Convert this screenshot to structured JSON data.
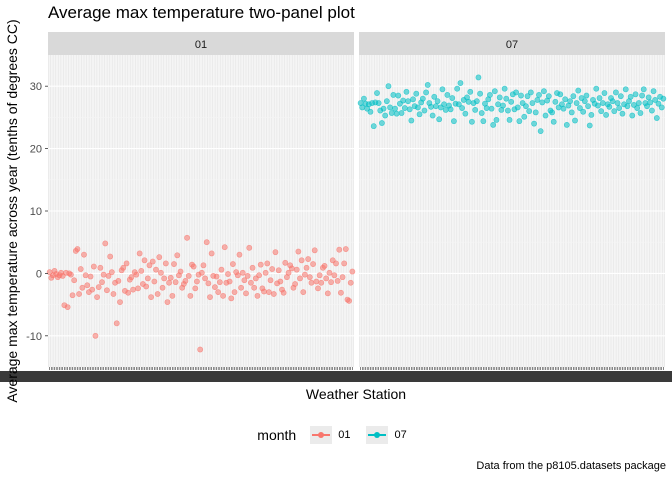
{
  "chart_data": {
    "type": "scatter",
    "title": "Average max temperature two-panel plot",
    "xlabel": "Weather Station",
    "ylabel": "Average max temperature across year (tenths of degrees CC)",
    "caption": "Data from the p8105.datasets package",
    "ylim": [
      -15,
      35
    ],
    "y_ticks": [
      -10,
      0,
      10,
      20,
      30
    ],
    "x_ticks_note": "hundreds of overlapping station id labels (illegible)",
    "grid": true,
    "legend": {
      "title": "month",
      "placement": "bottom",
      "entries": [
        "01",
        "07"
      ]
    },
    "facets": [
      "01",
      "07"
    ],
    "series": [
      {
        "name": "01",
        "color": "#F8766D",
        "values": [
          0.2,
          -0.7,
          -0.3,
          0.4,
          -0.1,
          -0.6,
          -0.3,
          0.1,
          -0.4,
          -5.1,
          0.1,
          -5.4,
          0.0,
          -0.2,
          -3.5,
          -1.1,
          3.6,
          3.9,
          -3.3,
          0.7,
          -2.3,
          3.0,
          -0.3,
          -1.9,
          -3.0,
          -0.5,
          -2.6,
          1.1,
          -10.0,
          -3.8,
          -2.2,
          0.9,
          -1.4,
          -0.2,
          4.8,
          -2.7,
          -0.4,
          2.7,
          0.2,
          -3.3,
          -1.5,
          -8.0,
          -1.2,
          -4.6,
          0.5,
          0.9,
          -2.8,
          1.6,
          -3.1,
          -1.0,
          -0.6,
          -2.6,
          0.2,
          -0.2,
          -2.4,
          3.2,
          0.4,
          -1.7,
          2.1,
          -2.1,
          -0.8,
          1.3,
          -3.8,
          1.9,
          -1.3,
          0.6,
          -3.3,
          2.6,
          0.1,
          -2.3,
          -0.8,
          1.6,
          -4.6,
          -1.5,
          -0.7,
          -3.6,
          1.5,
          -1.4,
          2.9,
          -0.3,
          0.3,
          -2.3,
          -1.7,
          -1.2,
          5.7,
          -0.4,
          -3.6,
          1.4,
          1.1,
          -2.4,
          -1.3,
          -0.2,
          -12.2,
          0.1,
          1.3,
          -0.8,
          5.0,
          -1.6,
          -3.8,
          3.2,
          -0.4,
          -2.2,
          -0.5,
          -3.0,
          -1.4,
          0.6,
          -3.6,
          4.2,
          -1.5,
          -0.1,
          -1.3,
          -4.0,
          1.5,
          -3.0,
          0.2,
          -0.3,
          3.0,
          -2.3,
          0.1,
          -1.1,
          -3.2,
          -0.4,
          4.1,
          -1.5,
          0.9,
          -2.3,
          -0.8,
          -3.6,
          -0.3,
          1.4,
          -2.4,
          -2.9,
          0.1,
          1.6,
          -3.0,
          -1.1,
          0.7,
          -3.3,
          3.4,
          -1.6,
          0.5,
          -1.3,
          -2.6,
          -3.1,
          1.7,
          -0.6,
          0.1,
          1.3,
          0.8,
          -2.3,
          -1.7,
          0.6,
          3.5,
          -0.8,
          2.1,
          -3.0,
          -0.2,
          0.9,
          2.3,
          -0.6,
          -1.5,
          1.5,
          3.7,
          -1.3,
          -2.4,
          -0.3,
          -1.5,
          0.9,
          1.2,
          -0.8,
          -3.2,
          0.1,
          -1.4,
          2.1,
          -0.3,
          1.6,
          -1.2,
          3.8,
          -3.1,
          -0.6,
          1.6,
          3.9,
          -4.2,
          -4.4,
          -1.5,
          0.3
        ]
      },
      {
        "name": "07",
        "color": "#00BFC4",
        "values": [
          27.3,
          26.6,
          28.0,
          27.2,
          26.4,
          27.1,
          25.9,
          27.3,
          23.6,
          27.4,
          28.9,
          27.3,
          26.1,
          24.1,
          26.4,
          25.3,
          27.6,
          30.0,
          26.6,
          25.7,
          28.6,
          26.4,
          25.6,
          28.5,
          27.2,
          25.7,
          27.7,
          26.5,
          29.1,
          27.6,
          26.3,
          24.5,
          27.9,
          26.8,
          28.8,
          26.6,
          25.5,
          27.4,
          28.0,
          26.1,
          29.0,
          30.2,
          27.3,
          26.7,
          25.3,
          28.3,
          26.8,
          27.6,
          24.7,
          26.6,
          29.5,
          27.1,
          26.2,
          28.6,
          26.9,
          26.3,
          28.1,
          24.4,
          27.2,
          29.6,
          27.1,
          30.5,
          26.5,
          27.8,
          25.6,
          28.2,
          27.5,
          29.1,
          24.3,
          27.3,
          26.2,
          27.6,
          31.4,
          28.8,
          25.7,
          24.4,
          27.2,
          26.5,
          27.9,
          28.6,
          26.4,
          23.8,
          29.2,
          24.6,
          27.1,
          28.2,
          26.2,
          26.9,
          29.6,
          28.0,
          26.1,
          24.6,
          27.5,
          28.7,
          26.3,
          29.0,
          26.6,
          24.4,
          28.5,
          27.3,
          25.1,
          26.8,
          28.4,
          26.0,
          29.0,
          27.3,
          24.0,
          25.8,
          27.8,
          28.6,
          22.8,
          27.4,
          29.2,
          25.3,
          27.7,
          28.4,
          26.1,
          25.8,
          24.3,
          27.5,
          28.9,
          26.6,
          28.7,
          27.1,
          26.4,
          27.9,
          23.8,
          26.9,
          27.6,
          25.8,
          28.4,
          24.5,
          27.3,
          29.3,
          26.5,
          28.1,
          25.9,
          27.6,
          28.5,
          26.8,
          23.7,
          25.4,
          27.8,
          27.2,
          29.6,
          26.9,
          28.1,
          26.0,
          27.3,
          28.9,
          25.4,
          27.1,
          26.7,
          28.1,
          27.6,
          26.0,
          29.0,
          27.3,
          26.5,
          28.4,
          25.6,
          27.1,
          29.5,
          26.8,
          27.6,
          28.3,
          25.3,
          27.0,
          28.7,
          26.5,
          27.3,
          25.7,
          28.5,
          29.5,
          27.3,
          26.8,
          28.2,
          27.4,
          26.1,
          29.2,
          27.8,
          24.9,
          27.2,
          28.3,
          26.6,
          28.0
        ]
      }
    ]
  }
}
